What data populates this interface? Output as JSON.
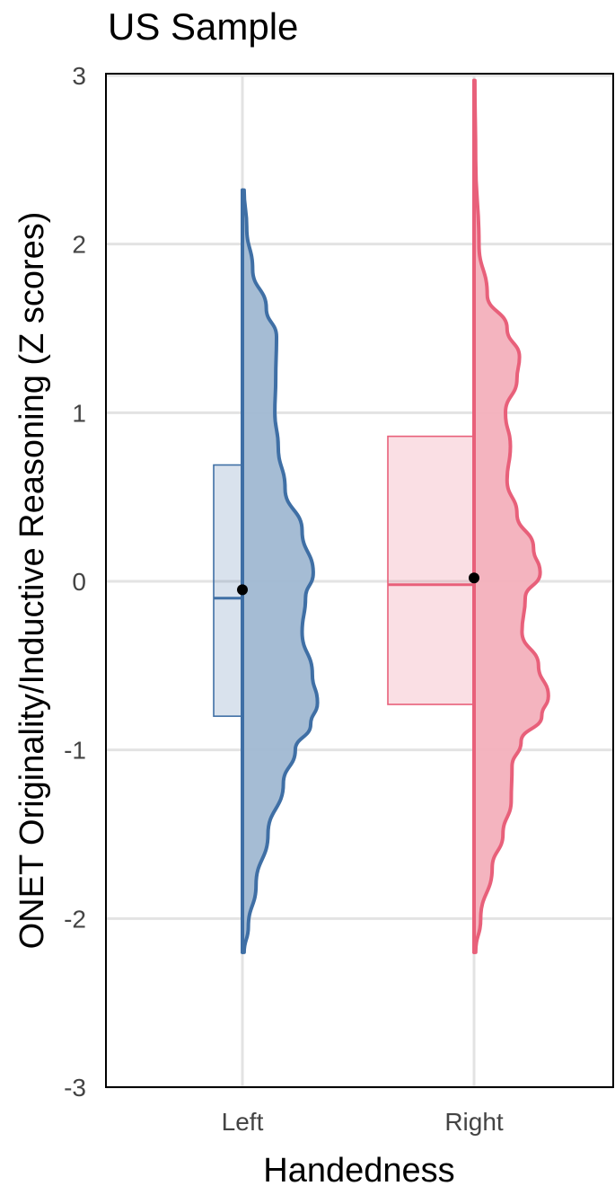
{
  "chart_data": {
    "type": "raincloud",
    "title": "US Sample",
    "xlabel": "Handedness",
    "ylabel": "ONET Originality/Inductive Reasoning (Z scores)",
    "categories": [
      "Left",
      "Right"
    ],
    "ylim": [
      -3,
      3
    ],
    "yticks": [
      "3",
      "2",
      "1",
      "0",
      "-1",
      "-2",
      "-3"
    ],
    "ytick_values": [
      3,
      2,
      1,
      0,
      -1,
      -2,
      -3
    ],
    "grid": true,
    "legend": "none",
    "series": [
      {
        "category": "Left",
        "color": "#3f6fa5",
        "fill": "#a0b8d2",
        "box": {
          "q1": -0.8,
          "median": -0.1,
          "q3": 0.69
        },
        "mean": -0.05,
        "mean_error": [
          -0.08,
          -0.02
        ],
        "range": [
          -2.2,
          2.32
        ],
        "density_profile": [
          [
            -2.2,
            0.02
          ],
          [
            -2.05,
            0.07
          ],
          [
            -1.8,
            0.16
          ],
          [
            -1.5,
            0.3
          ],
          [
            -1.2,
            0.48
          ],
          [
            -1.0,
            0.62
          ],
          [
            -0.85,
            0.8
          ],
          [
            -0.72,
            0.88
          ],
          [
            -0.55,
            0.82
          ],
          [
            -0.3,
            0.7
          ],
          [
            -0.1,
            0.74
          ],
          [
            0.05,
            0.83
          ],
          [
            0.3,
            0.7
          ],
          [
            0.55,
            0.5
          ],
          [
            0.8,
            0.42
          ],
          [
            1.0,
            0.38
          ],
          [
            1.2,
            0.39
          ],
          [
            1.45,
            0.4
          ],
          [
            1.62,
            0.28
          ],
          [
            1.85,
            0.12
          ],
          [
            2.1,
            0.05
          ],
          [
            2.32,
            0.02
          ]
        ]
      },
      {
        "category": "Right",
        "color": "#e8607a",
        "fill": "#f3b0bc",
        "box": {
          "q1": -0.73,
          "median": -0.02,
          "q3": 0.86
        },
        "mean": 0.02,
        "mean_error": [
          0.0,
          0.04
        ],
        "range": [
          -2.2,
          2.97
        ],
        "density_profile": [
          [
            -2.2,
            0.02
          ],
          [
            -2.0,
            0.08
          ],
          [
            -1.7,
            0.22
          ],
          [
            -1.5,
            0.35
          ],
          [
            -1.3,
            0.45
          ],
          [
            -1.1,
            0.46
          ],
          [
            -0.95,
            0.57
          ],
          [
            -0.8,
            0.82
          ],
          [
            -0.68,
            0.9
          ],
          [
            -0.5,
            0.78
          ],
          [
            -0.3,
            0.58
          ],
          [
            -0.1,
            0.62
          ],
          [
            0.05,
            0.8
          ],
          [
            0.2,
            0.72
          ],
          [
            0.4,
            0.52
          ],
          [
            0.6,
            0.4
          ],
          [
            0.8,
            0.44
          ],
          [
            1.0,
            0.38
          ],
          [
            1.2,
            0.52
          ],
          [
            1.33,
            0.55
          ],
          [
            1.5,
            0.4
          ],
          [
            1.7,
            0.16
          ],
          [
            2.0,
            0.06
          ],
          [
            2.5,
            0.02
          ],
          [
            2.97,
            0.01
          ]
        ]
      }
    ]
  }
}
